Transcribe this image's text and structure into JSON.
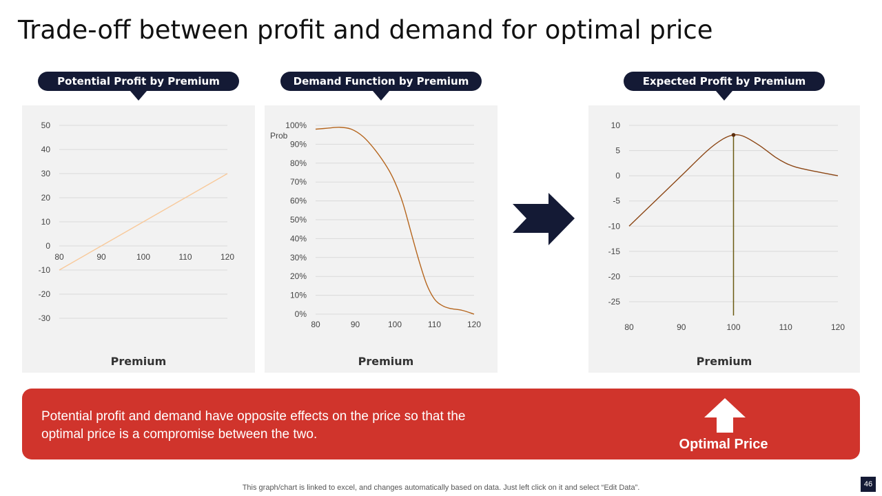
{
  "slide": {
    "title": "Trade-off between profit and demand for optimal price",
    "banner_text": "Potential profit and demand  have opposite effects on the price so that the optimal  price is a compromise  between the two.",
    "optimal_label": "Optimal Price",
    "footer_note": "This graph/chart is linked to excel,  and changes automatically based on data. Just left click on it and select “Edit Data”.",
    "page_number": "46"
  },
  "colors": {
    "navy": "#141a35",
    "banner_red": "#d0342c",
    "panel_bg": "#f2f2f2",
    "profit_line": "#f8c99a",
    "curve_brown": "#b5651d",
    "expected_line": "#8b4513"
  },
  "chart_data": [
    {
      "id": "potential-profit",
      "type": "line",
      "header": "Potential Profit by Premium",
      "title": "",
      "xlabel": "Premium",
      "ylabel": "",
      "xlim": [
        80,
        120
      ],
      "ylim": [
        -30,
        50
      ],
      "x_ticks": [
        80,
        90,
        100,
        110,
        120
      ],
      "y_ticks": [
        50,
        40,
        30,
        20,
        10,
        0,
        -10,
        -20,
        -30
      ],
      "y_tick_labels": [
        "50",
        "40",
        "30",
        "20",
        "10",
        "0",
        "-10",
        "-20",
        "-30"
      ],
      "grid": true,
      "series": [
        {
          "x": [
            80,
            90,
            100,
            110,
            120
          ],
          "y": [
            -10,
            0,
            10,
            20,
            30
          ]
        }
      ]
    },
    {
      "id": "demand-function",
      "type": "line",
      "header": "Demand Function by Premium",
      "title": "",
      "xlabel": "Premium",
      "ylabel": "Prob",
      "xlim": [
        80,
        120
      ],
      "ylim": [
        0,
        1
      ],
      "x_ticks": [
        80,
        90,
        100,
        110,
        120
      ],
      "y_ticks": [
        1,
        0.9,
        0.8,
        0.7,
        0.6,
        0.5,
        0.4,
        0.3,
        0.2,
        0.1,
        0
      ],
      "y_tick_labels": [
        "100%",
        "90%",
        "80%",
        "70%",
        "60%",
        "50%",
        "40%",
        "30%",
        "20%",
        "10%",
        "0%"
      ],
      "grid": true,
      "series": [
        {
          "x": [
            80,
            83,
            86,
            89,
            92,
            95,
            98,
            100,
            102,
            104,
            106,
            108,
            110,
            112,
            114,
            117,
            120
          ],
          "y": [
            0.98,
            0.985,
            0.99,
            0.98,
            0.94,
            0.87,
            0.78,
            0.7,
            0.59,
            0.44,
            0.29,
            0.16,
            0.08,
            0.045,
            0.03,
            0.02,
            0.0
          ]
        }
      ]
    },
    {
      "id": "expected-profit",
      "type": "line",
      "header": "Expected Profit by Premium",
      "title": "",
      "xlabel": "Premium",
      "ylabel": "",
      "xlim": [
        80,
        120
      ],
      "ylim": [
        -25,
        10
      ],
      "x_ticks": [
        80,
        90,
        100,
        110,
        120
      ],
      "y_ticks": [
        10,
        5,
        0,
        -5,
        -10,
        -15,
        -20,
        -25
      ],
      "y_tick_labels": [
        "10",
        "5",
        "0",
        "-5",
        "-10",
        "-15",
        "-20",
        "-25"
      ],
      "grid": true,
      "optimal_x": 100,
      "series": [
        {
          "x": [
            80,
            85,
            90,
            95,
            98,
            100,
            102,
            105,
            108,
            110,
            112,
            115,
            120
          ],
          "y": [
            -10,
            -5,
            0,
            5,
            7.3,
            8.1,
            7.8,
            6.0,
            3.7,
            2.5,
            1.7,
            1.0,
            0
          ]
        }
      ]
    }
  ]
}
